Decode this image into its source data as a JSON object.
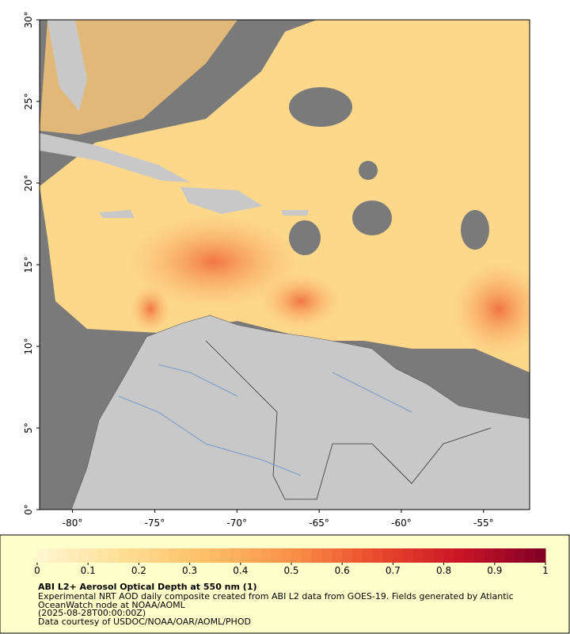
{
  "map": {
    "lon_range": [
      -82,
      -52.2
    ],
    "lat_range": [
      0,
      30
    ],
    "lon_ticks": [
      {
        "value": -80,
        "label": "-80°"
      },
      {
        "value": -75,
        "label": "-75°"
      },
      {
        "value": -70,
        "label": "-70°"
      },
      {
        "value": -65,
        "label": "-65°"
      },
      {
        "value": -60,
        "label": "-60°"
      },
      {
        "value": -55,
        "label": "-55°"
      }
    ],
    "lat_ticks": [
      {
        "value": 0,
        "label": "0°"
      },
      {
        "value": 5,
        "label": "5°"
      },
      {
        "value": 10,
        "label": "10°"
      },
      {
        "value": 15,
        "label": "15°"
      },
      {
        "value": 20,
        "label": "20°"
      },
      {
        "value": 25,
        "label": "25°"
      },
      {
        "value": 30,
        "label": "30°"
      }
    ]
  },
  "legend": {
    "range": [
      0,
      1
    ],
    "ticks": [
      0,
      0.1,
      0.2,
      0.3,
      0.4,
      0.5,
      0.6,
      0.7,
      0.8,
      0.9,
      1
    ],
    "colormap": [
      "#fff6d2",
      "#fedf94",
      "#fdbf66",
      "#f99148",
      "#ea4a2c",
      "#c81426",
      "#800026"
    ],
    "title": "ABI L2+ Aerosol Optical Depth at 550 nm (1)",
    "lines": [
      "Experimental NRT AOD daily composite created from ABI L2 data from GOES-19. Fields generated by Atlantic",
      "OceanWatch node at NOAA/AOML",
      "(2025-08-28T00:00:00Z)",
      "Data courtesy of USDOC/NOAA/OAR/AOML/PHOD"
    ]
  }
}
